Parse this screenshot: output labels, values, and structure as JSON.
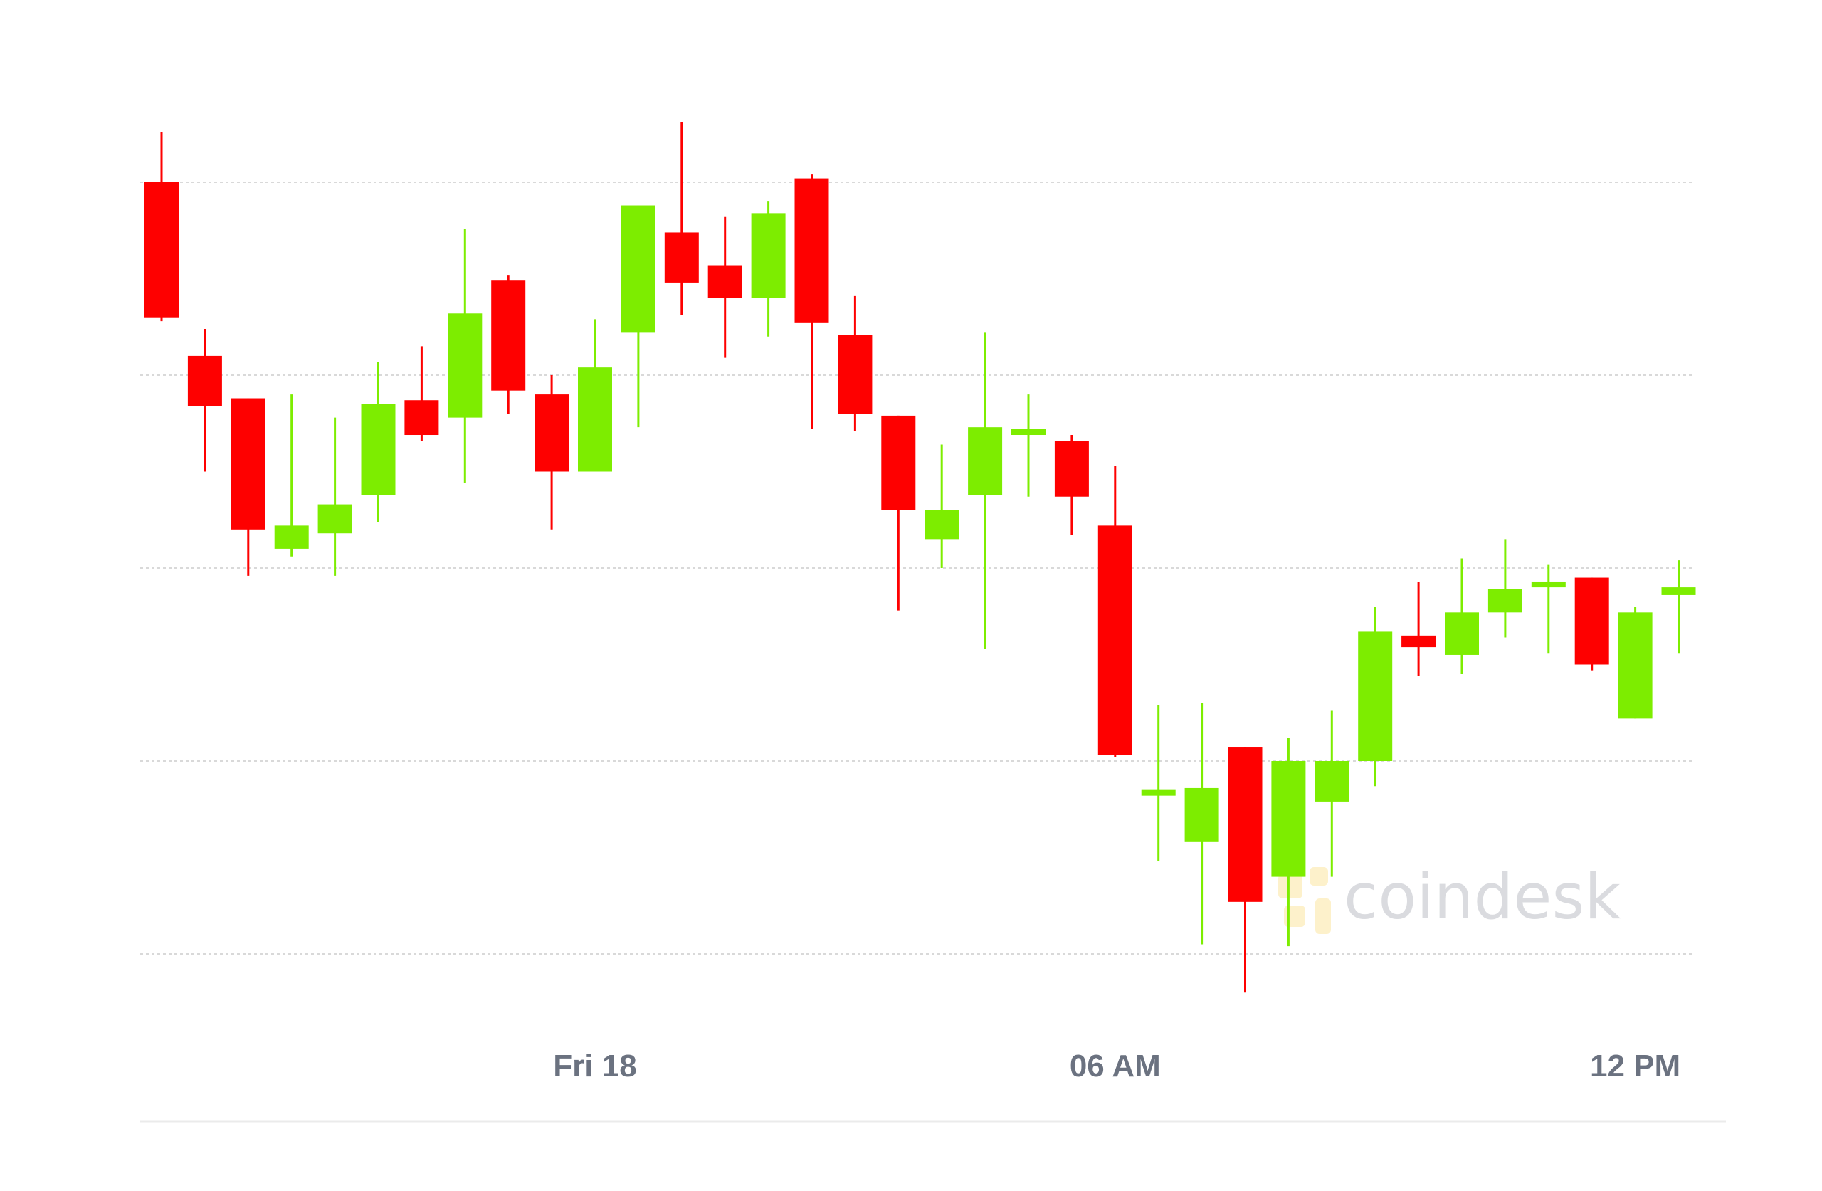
{
  "chart_data": {
    "type": "candlestick",
    "x_tick_labels": [
      "Fri 18",
      "06 AM",
      "12 PM"
    ],
    "x_tick_index": [
      10,
      22,
      34
    ],
    "y_gridlines": [
      5,
      4,
      3,
      2,
      1
    ],
    "ylim": [
      0.8,
      5.5
    ],
    "grid": "horizontal-dotted",
    "colors": {
      "up": "#7ded00",
      "down": "#fe0000",
      "grid": "#d9d9d9",
      "axis": "#ebebeb",
      "label": "#6b7280"
    },
    "candles": [
      {
        "o": 5.0,
        "h": 5.26,
        "l": 4.28,
        "c": 4.3
      },
      {
        "o": 4.1,
        "h": 4.24,
        "l": 3.5,
        "c": 3.84
      },
      {
        "o": 3.88,
        "h": 3.88,
        "l": 2.96,
        "c": 3.2
      },
      {
        "o": 3.1,
        "h": 3.9,
        "l": 3.06,
        "c": 3.22
      },
      {
        "o": 3.18,
        "h": 3.78,
        "l": 2.96,
        "c": 3.33
      },
      {
        "o": 3.38,
        "h": 4.07,
        "l": 3.24,
        "c": 3.85
      },
      {
        "o": 3.87,
        "h": 4.15,
        "l": 3.66,
        "c": 3.69
      },
      {
        "o": 3.78,
        "h": 4.76,
        "l": 3.44,
        "c": 4.32
      },
      {
        "o": 4.49,
        "h": 4.52,
        "l": 3.8,
        "c": 3.92
      },
      {
        "o": 3.9,
        "h": 4.0,
        "l": 3.2,
        "c": 3.5
      },
      {
        "o": 3.5,
        "h": 4.29,
        "l": 3.5,
        "c": 4.04
      },
      {
        "o": 4.22,
        "h": 4.88,
        "l": 3.73,
        "c": 4.88
      },
      {
        "o": 4.74,
        "h": 5.31,
        "l": 4.31,
        "c": 4.48
      },
      {
        "o": 4.57,
        "h": 4.82,
        "l": 4.09,
        "c": 4.4
      },
      {
        "o": 4.4,
        "h": 4.9,
        "l": 4.2,
        "c": 4.84
      },
      {
        "o": 5.02,
        "h": 5.04,
        "l": 3.72,
        "c": 4.27
      },
      {
        "o": 4.21,
        "h": 4.41,
        "l": 3.71,
        "c": 3.8
      },
      {
        "o": 3.79,
        "h": 3.79,
        "l": 2.78,
        "c": 3.3
      },
      {
        "o": 3.15,
        "h": 3.64,
        "l": 3.0,
        "c": 3.3
      },
      {
        "o": 3.38,
        "h": 4.22,
        "l": 2.58,
        "c": 3.73
      },
      {
        "o": 3.69,
        "h": 3.9,
        "l": 3.37,
        "c": 3.72
      },
      {
        "o": 3.66,
        "h": 3.69,
        "l": 3.17,
        "c": 3.37
      },
      {
        "o": 3.22,
        "h": 3.53,
        "l": 2.02,
        "c": 2.03
      },
      {
        "o": 1.85,
        "h": 2.29,
        "l": 1.48,
        "c": 1.85
      },
      {
        "o": 1.58,
        "h": 2.3,
        "l": 1.05,
        "c": 1.86
      },
      {
        "o": 2.07,
        "h": 2.07,
        "l": 0.8,
        "c": 1.27
      },
      {
        "o": 1.4,
        "h": 2.12,
        "l": 1.04,
        "c": 2.0
      },
      {
        "o": 1.79,
        "h": 2.26,
        "l": 1.4,
        "c": 2.0
      },
      {
        "o": 2.0,
        "h": 2.8,
        "l": 1.87,
        "c": 2.67
      },
      {
        "o": 2.65,
        "h": 2.93,
        "l": 2.44,
        "c": 2.59
      },
      {
        "o": 2.55,
        "h": 3.05,
        "l": 2.45,
        "c": 2.77
      },
      {
        "o": 2.77,
        "h": 3.15,
        "l": 2.64,
        "c": 2.89
      },
      {
        "o": 2.9,
        "h": 3.02,
        "l": 2.56,
        "c": 2.93
      },
      {
        "o": 2.95,
        "h": 2.95,
        "l": 2.47,
        "c": 2.5
      },
      {
        "o": 2.22,
        "h": 2.8,
        "l": 2.22,
        "c": 2.77
      },
      {
        "o": 2.86,
        "h": 3.04,
        "l": 2.56,
        "c": 2.9
      }
    ]
  },
  "watermark": {
    "text": "coindesk",
    "logo_icon": "coindesk-logo-icon"
  }
}
